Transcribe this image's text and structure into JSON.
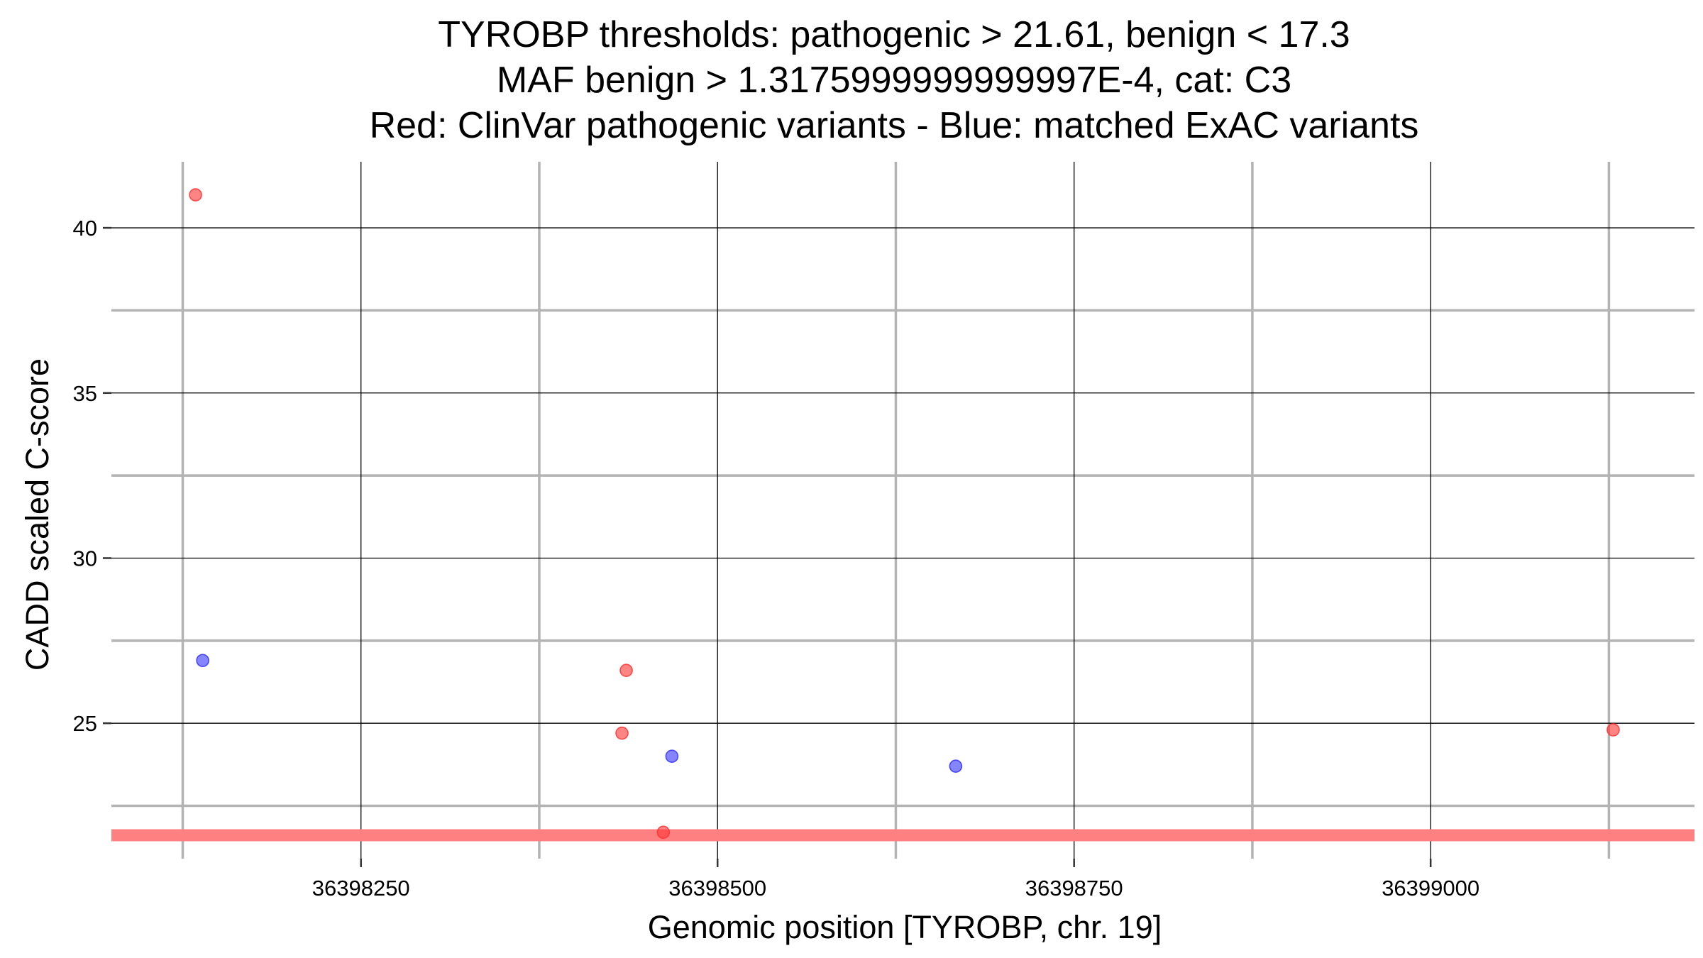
{
  "chart_data": {
    "type": "scatter",
    "title": [
      "TYROBP thresholds: pathogenic > 21.61, benign < 17.3",
      "MAF benign > 1.3175999999999997E-4, cat: C3",
      "Red: ClinVar pathogenic variants - Blue: matched ExAC variants"
    ],
    "xlabel": "Genomic position [TYROBP, chr. 19]",
    "ylabel": "CADD scaled C-score",
    "xlim": [
      36398075,
      36399185
    ],
    "ylim": [
      20.9,
      42.0
    ],
    "x_ticks": [
      36398250,
      36398500,
      36398750,
      36399000
    ],
    "x_tick_labels": [
      "36398250",
      "36398500",
      "36398750",
      "36399000"
    ],
    "x_minor_ticks": [
      36398125,
      36398375,
      36398625,
      36398875,
      36399125
    ],
    "y_ticks": [
      25,
      30,
      35,
      40
    ],
    "y_tick_labels": [
      "25",
      "30",
      "35",
      "40"
    ],
    "y_minor_ticks": [
      22.5,
      27.5,
      32.5,
      37.5
    ],
    "grid": true,
    "threshold_line": {
      "y": 21.61,
      "color": "#ff8080"
    },
    "series": [
      {
        "color": "#ff3333",
        "points": [
          {
            "x": 36398134,
            "y": 41.0
          },
          {
            "x": 36398433,
            "y": 24.7
          },
          {
            "x": 36398436,
            "y": 26.6
          },
          {
            "x": 36398462,
            "y": 21.7
          },
          {
            "x": 36399128,
            "y": 24.8
          }
        ]
      },
      {
        "color": "#3333ff",
        "points": [
          {
            "x": 36398139,
            "y": 26.9
          },
          {
            "x": 36398468,
            "y": 24.0
          },
          {
            "x": 36398667,
            "y": 23.7
          }
        ]
      }
    ]
  }
}
